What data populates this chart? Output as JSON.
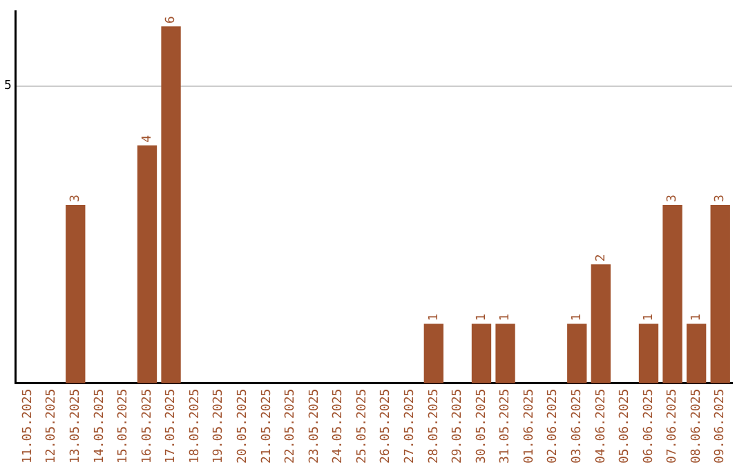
{
  "chart_data": {
    "type": "bar",
    "categories": [
      "11.05.2025",
      "12.05.2025",
      "13.05.2025",
      "14.05.2025",
      "15.05.2025",
      "16.05.2025",
      "17.05.2025",
      "18.05.2025",
      "19.05.2025",
      "20.05.2025",
      "21.05.2025",
      "22.05.2025",
      "23.05.2025",
      "24.05.2025",
      "25.05.2025",
      "26.05.2025",
      "27.05.2025",
      "28.05.2025",
      "29.05.2025",
      "30.05.2025",
      "31.05.2025",
      "01.06.2025",
      "02.06.2025",
      "03.06.2025",
      "04.06.2025",
      "05.06.2025",
      "06.06.2025",
      "07.06.2025",
      "08.06.2025",
      "09.06.2025"
    ],
    "values": [
      0,
      0,
      3,
      0,
      0,
      4,
      6,
      0,
      0,
      0,
      0,
      0,
      0,
      0,
      0,
      0,
      0,
      1,
      0,
      1,
      1,
      0,
      0,
      1,
      2,
      0,
      1,
      3,
      1,
      3
    ],
    "value_labels": [
      null,
      null,
      "3",
      null,
      null,
      "4",
      "6",
      null,
      null,
      null,
      null,
      null,
      null,
      null,
      null,
      null,
      null,
      "1",
      null,
      "1",
      "1",
      null,
      null,
      "1",
      "2",
      null,
      "1",
      "3",
      "1",
      "3"
    ],
    "color": "#a0522d",
    "ylim": [
      0,
      6.25
    ],
    "yticks": [
      5
    ],
    "grid": "y",
    "legend": false
  }
}
